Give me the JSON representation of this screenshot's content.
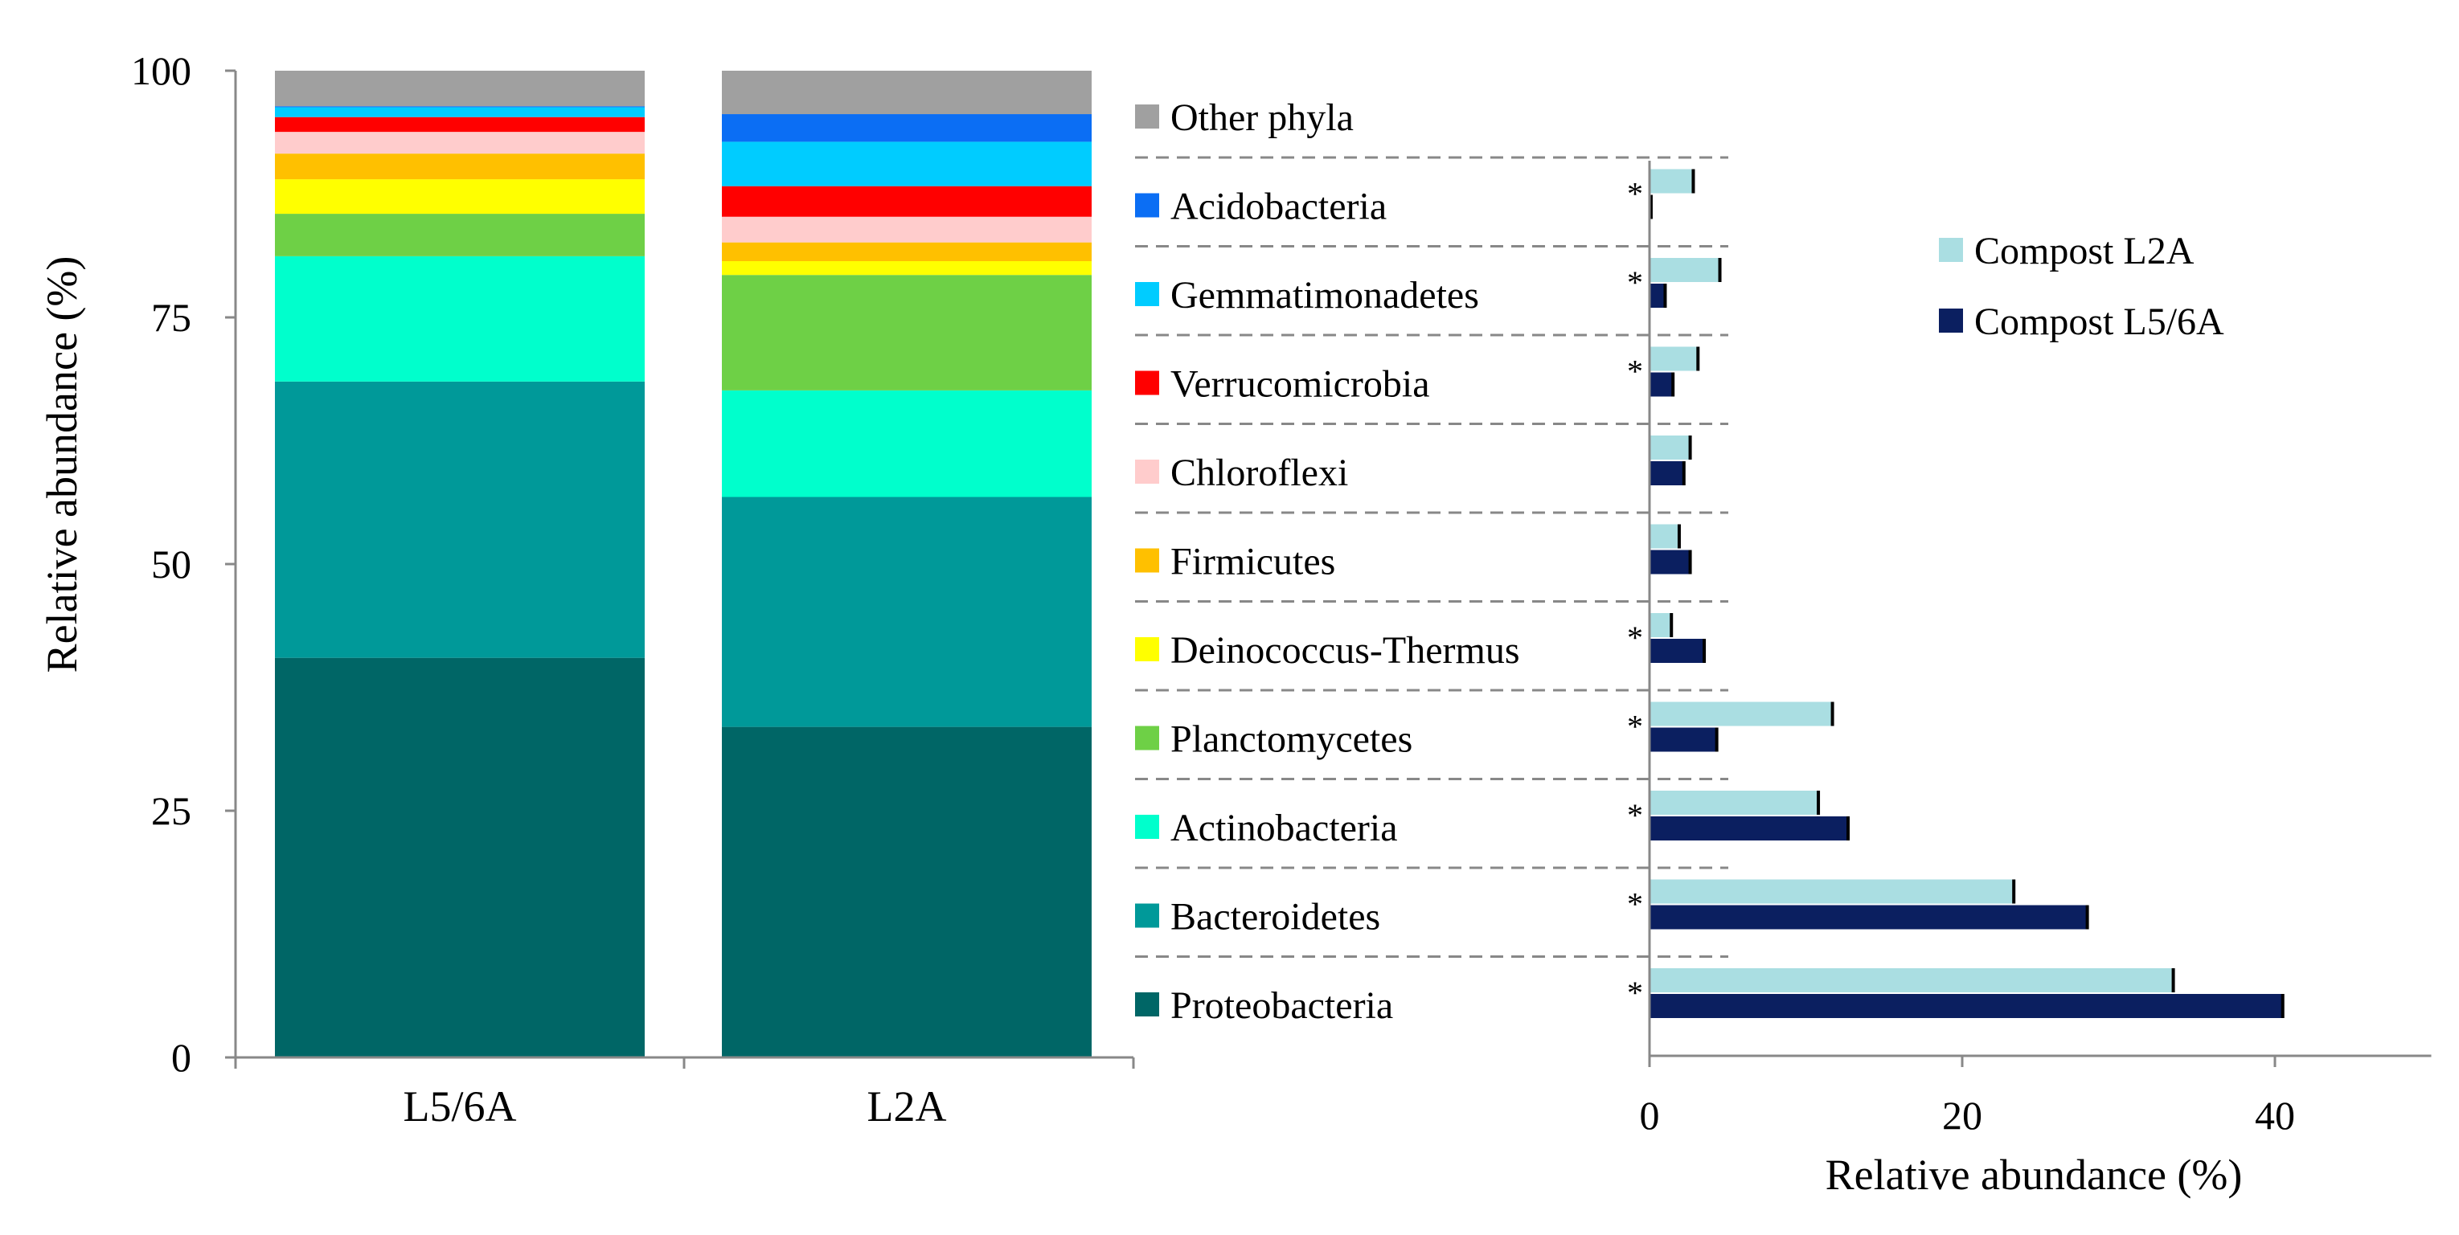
{
  "colors": {
    "Other phyla": "#a0a0a0",
    "Acidobacteria": "#0b6ef4",
    "Gemmatimonadetes": "#00ccff",
    "Verrucomicrobia": "#ff0000",
    "Chloroflexi": "#ffcccc",
    "Firmicutes": "#ffc000",
    "Deinococcus-Thermus": "#ffff00",
    "Planctomycetes": "#6ed046",
    "Actinobacteria": "#00ffcc",
    "Bacteroidetes": "#009999",
    "Proteobacteria": "#006666",
    "compost_l2a": "#aadee2",
    "compost_l56a": "#0b1f60"
  },
  "chart_data": [
    {
      "type": "bar",
      "stacked": true,
      "orientation": "vertical",
      "title": "",
      "xlabel": "",
      "ylabel": "Relative abundance (%)",
      "ylim": [
        0,
        100
      ],
      "yticks": [
        "0",
        "25",
        "50",
        "75",
        "100"
      ],
      "categories": [
        "L5/6A",
        "L2A"
      ],
      "series": [
        {
          "name": "Proteobacteria",
          "values": [
            40.5,
            33.5
          ]
        },
        {
          "name": "Bacteroidetes",
          "values": [
            28.0,
            23.3
          ]
        },
        {
          "name": "Actinobacteria",
          "values": [
            12.7,
            10.8
          ]
        },
        {
          "name": "Planctomycetes",
          "values": [
            4.3,
            11.7
          ]
        },
        {
          "name": "Deinococcus-Thermus",
          "values": [
            3.5,
            1.4
          ]
        },
        {
          "name": "Firmicutes",
          "values": [
            2.6,
            1.9
          ]
        },
        {
          "name": "Chloroflexi",
          "values": [
            2.2,
            2.6
          ]
        },
        {
          "name": "Verrucomicrobia",
          "values": [
            1.5,
            3.1
          ]
        },
        {
          "name": "Gemmatimonadetes",
          "values": [
            1.0,
            4.5
          ]
        },
        {
          "name": "Acidobacteria",
          "values": [
            0.1,
            2.8
          ]
        },
        {
          "name": "Other phyla",
          "values": [
            3.6,
            4.4
          ]
        }
      ],
      "legend": [
        "Other phyla",
        "Acidobacteria",
        "Gemmatimonadetes",
        "Verrucomicrobia",
        "Chloroflexi",
        "Firmicutes",
        "Deinococcus-Thermus",
        "Planctomycetes",
        "Actinobacteria",
        "Bacteroidetes",
        "Proteobacteria"
      ],
      "legend_placement": "right"
    },
    {
      "type": "bar",
      "orientation": "horizontal",
      "title": "",
      "xlabel": "Relative abundance (%)",
      "ylabel": "",
      "xlim": [
        0,
        50
      ],
      "xticks": [
        "0",
        "20",
        "40"
      ],
      "categories": [
        "Acidobacteria",
        "Gemmatimonadetes",
        "Verrucomicrobia",
        "Chloroflexi",
        "Firmicutes",
        "Deinococcus-Thermus",
        "Planctomycetes",
        "Actinobacteria",
        "Bacteroidetes",
        "Proteobacteria"
      ],
      "significance": [
        "*",
        "*",
        "*",
        "",
        "",
        "*",
        "*",
        "*",
        "*",
        "*"
      ],
      "series": [
        {
          "name": "Compost L2A",
          "values": [
            2.8,
            4.5,
            3.1,
            2.6,
            1.9,
            1.4,
            11.7,
            10.8,
            23.3,
            33.5
          ],
          "errors": [
            0.3,
            0.3,
            0.3,
            0.3,
            0.3,
            0.3,
            0.3,
            0.3,
            0.3,
            0.3
          ]
        },
        {
          "name": "Compost L5/6A",
          "values": [
            0.1,
            1.0,
            1.5,
            2.2,
            2.6,
            3.5,
            4.3,
            12.7,
            28.0,
            40.5
          ],
          "errors": [
            0.3,
            0.3,
            0.3,
            0.3,
            0.3,
            0.3,
            0.3,
            0.3,
            0.3,
            0.3
          ]
        }
      ],
      "legend": [
        "Compost L2A",
        "Compost L5/6A"
      ],
      "legend_placement": "top-right"
    }
  ]
}
